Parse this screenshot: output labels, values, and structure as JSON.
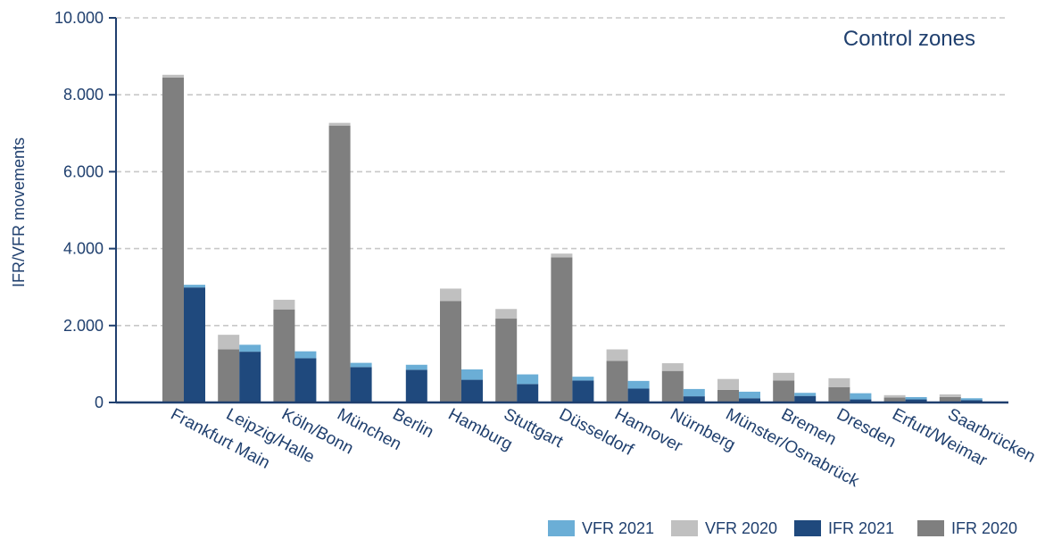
{
  "chart_data": {
    "type": "bar",
    "annotation": "Control zones",
    "ylabel": "IFR/VFR movements",
    "ylim": [
      0,
      10000
    ],
    "yticks": [
      {
        "value": 0,
        "label": "0"
      },
      {
        "value": 2000,
        "label": "2.000"
      },
      {
        "value": 4000,
        "label": "4.000"
      },
      {
        "value": 6000,
        "label": "6.000"
      },
      {
        "value": 8000,
        "label": "8.000"
      },
      {
        "value": 10000,
        "label": "10.000"
      }
    ],
    "grid": true,
    "legend_position": "bottom-right",
    "categories": [
      "Frankfurt Main",
      "Leipzig/Halle",
      "Köln/Bonn",
      "München",
      "Berlin",
      "Hamburg",
      "Stuttgart",
      "Düsseldorf",
      "Hannover",
      "Nürnberg",
      "Münster/Osnabrück",
      "Bremen",
      "Dresden",
      "Erfurt/Weimar",
      "Saarbrücken"
    ],
    "series": [
      {
        "name": "VFR 2021",
        "color": "#6baed6",
        "values": [
          70,
          180,
          180,
          110,
          130,
          270,
          250,
          100,
          200,
          190,
          170,
          80,
          160,
          60,
          50
        ]
      },
      {
        "name": "VFR 2020",
        "color": "#c0c0c0",
        "values": [
          70,
          380,
          250,
          70,
          0,
          320,
          250,
          100,
          300,
          200,
          280,
          200,
          230,
          60,
          70
        ]
      },
      {
        "name": "IFR 2021",
        "color": "#1f497d",
        "values": [
          2990,
          1320,
          1150,
          920,
          850,
          590,
          480,
          570,
          360,
          160,
          110,
          170,
          80,
          80,
          60
        ]
      },
      {
        "name": "IFR 2020",
        "color": "#7f7f7f",
        "values": [
          8450,
          1380,
          2420,
          7200,
          0,
          2640,
          2180,
          3770,
          1080,
          820,
          330,
          570,
          400,
          130,
          140
        ]
      }
    ],
    "legend_order": [
      "VFR 2021",
      "VFR 2020",
      "IFR 2021",
      "IFR 2020"
    ],
    "axis_color": "#1f3f6e",
    "grid_color": "#c8c8c8"
  }
}
